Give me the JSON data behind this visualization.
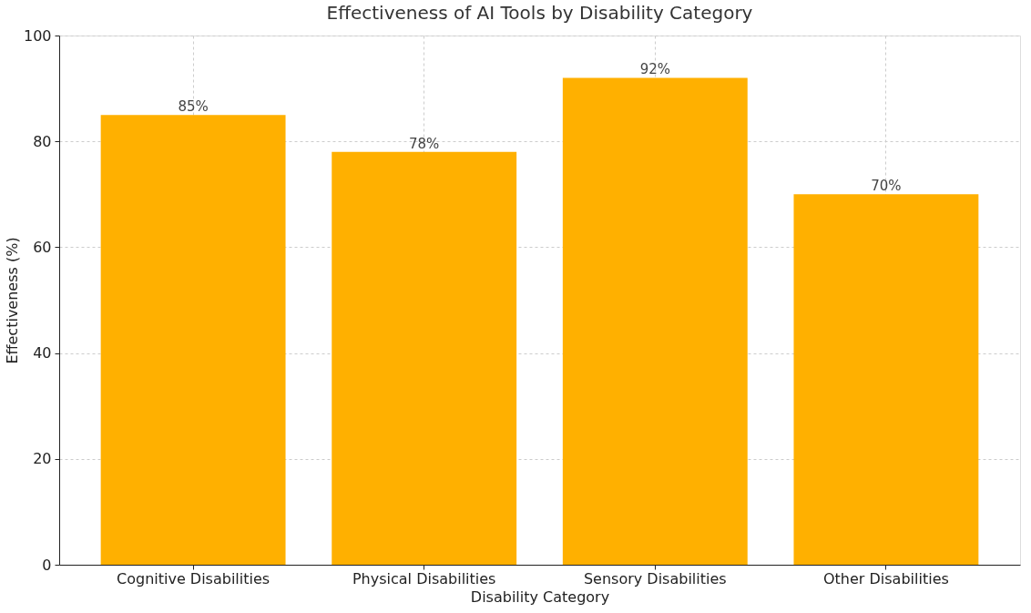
{
  "chart_data": {
    "type": "bar",
    "title": "Effectiveness of AI Tools by Disability Category",
    "xlabel": "Disability Category",
    "ylabel": "Effectiveness (%)",
    "categories": [
      "Cognitive Disabilities",
      "Physical Disabilities",
      "Sensory Disabilities",
      "Other Disabilities"
    ],
    "values": [
      85,
      78,
      92,
      70
    ],
    "color": "#ffb000",
    "value_labels": [
      "85%",
      "78%",
      "92%",
      "70%"
    ],
    "ylim": [
      0,
      100
    ],
    "yticks": [
      0,
      20,
      40,
      60,
      80,
      100
    ],
    "grid": true
  }
}
